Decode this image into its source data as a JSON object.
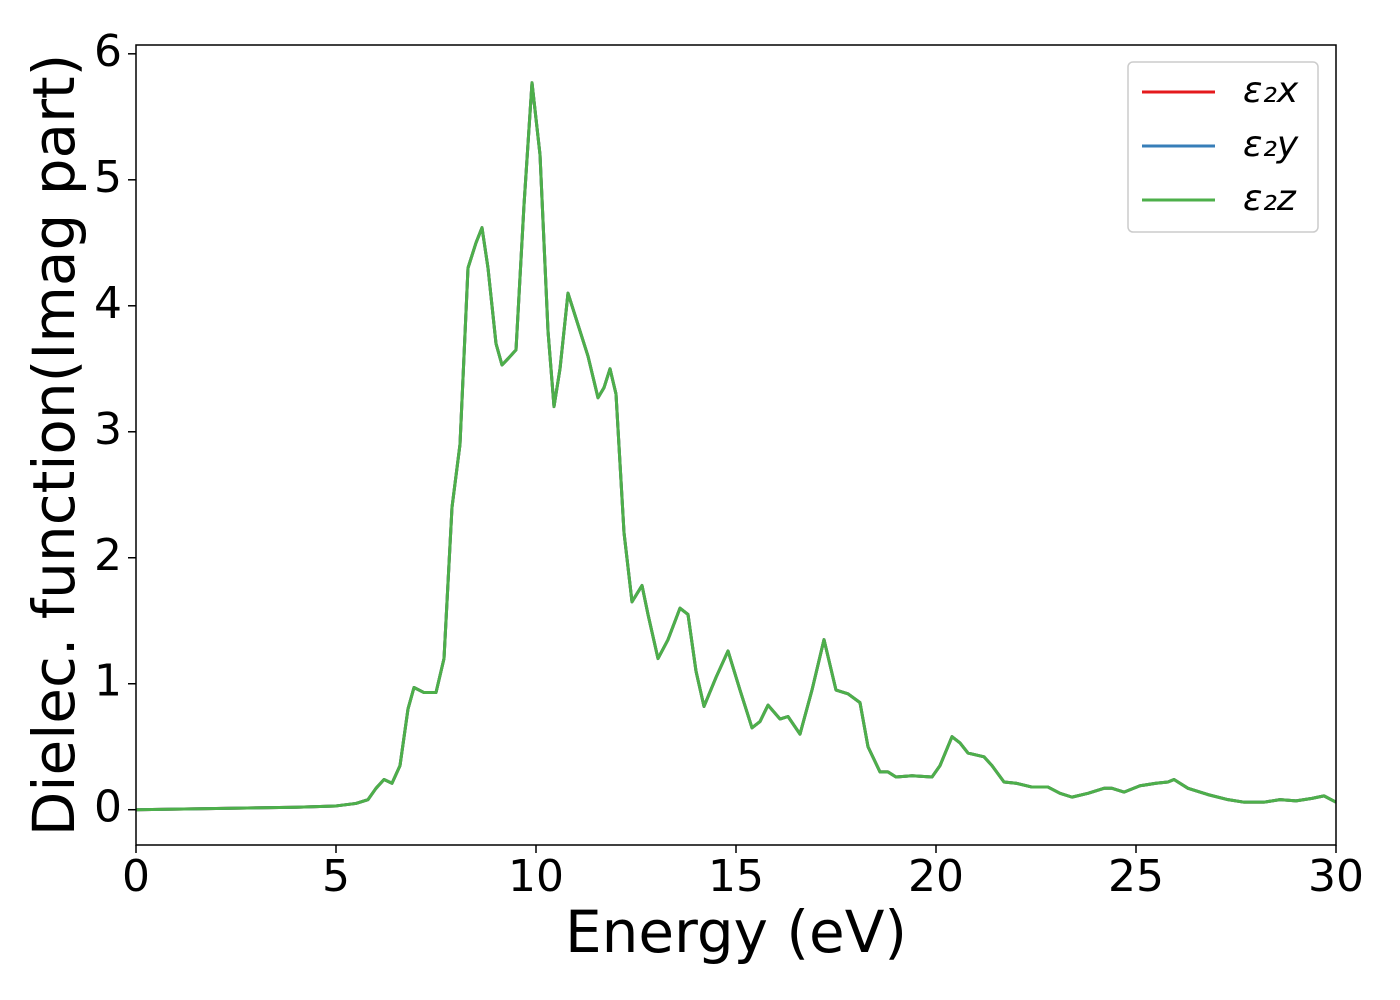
{
  "chart_data": {
    "type": "line",
    "xlabel": "Energy (eV)",
    "ylabel": "Dielec. function(Imag part)",
    "x": [
      0,
      2,
      4,
      5,
      5.5,
      5.8,
      6.0,
      6.2,
      6.4,
      6.6,
      6.8,
      6.95,
      7.2,
      7.5,
      7.7,
      7.9,
      8.1,
      8.3,
      8.5,
      8.65,
      8.8,
      9.0,
      9.15,
      9.3,
      9.5,
      9.7,
      9.9,
      10.1,
      10.3,
      10.45,
      10.6,
      10.8,
      11.0,
      11.3,
      11.55,
      11.7,
      11.85,
      12.0,
      12.2,
      12.4,
      12.65,
      12.8,
      13.05,
      13.3,
      13.6,
      13.8,
      14.0,
      14.2,
      14.5,
      14.8,
      15.1,
      15.4,
      15.6,
      15.8,
      16.1,
      16.3,
      16.6,
      16.9,
      17.2,
      17.5,
      17.8,
      18.1,
      18.3,
      18.6,
      18.8,
      19.0,
      19.4,
      19.9,
      20.1,
      20.4,
      20.6,
      20.8,
      21.2,
      21.4,
      21.7,
      22.0,
      22.4,
      22.8,
      23.1,
      23.4,
      23.8,
      24.2,
      24.4,
      24.7,
      25.1,
      25.5,
      25.8,
      25.95,
      26.3,
      26.8,
      27.3,
      27.7,
      28.2,
      28.6,
      29.0,
      29.4,
      29.7,
      30
    ],
    "series": [
      {
        "name": "ε₂x",
        "color": "#e41a1c",
        "values": [
          0,
          0.01,
          0.02,
          0.03,
          0.05,
          0.08,
          0.17,
          0.24,
          0.21,
          0.35,
          0.8,
          0.97,
          0.93,
          0.93,
          1.2,
          2.4,
          2.9,
          4.3,
          4.5,
          4.62,
          4.3,
          3.7,
          3.53,
          3.58,
          3.65,
          4.8,
          5.77,
          5.2,
          3.8,
          3.2,
          3.5,
          4.1,
          3.9,
          3.6,
          3.27,
          3.35,
          3.5,
          3.3,
          2.2,
          1.65,
          1.78,
          1.55,
          1.2,
          1.35,
          1.6,
          1.55,
          1.1,
          0.82,
          1.05,
          1.26,
          0.95,
          0.65,
          0.7,
          0.83,
          0.72,
          0.74,
          0.6,
          0.95,
          1.35,
          0.95,
          0.92,
          0.85,
          0.5,
          0.3,
          0.3,
          0.26,
          0.27,
          0.26,
          0.35,
          0.58,
          0.53,
          0.45,
          0.42,
          0.35,
          0.22,
          0.21,
          0.18,
          0.18,
          0.13,
          0.1,
          0.13,
          0.17,
          0.17,
          0.14,
          0.19,
          0.21,
          0.22,
          0.24,
          0.17,
          0.12,
          0.08,
          0.06,
          0.06,
          0.08,
          0.07,
          0.09,
          0.11,
          0.06
        ]
      },
      {
        "name": "ε₂y",
        "color": "#377eb8",
        "values": [
          0,
          0.01,
          0.02,
          0.03,
          0.05,
          0.08,
          0.17,
          0.24,
          0.21,
          0.35,
          0.8,
          0.97,
          0.93,
          0.93,
          1.2,
          2.4,
          2.9,
          4.3,
          4.5,
          4.62,
          4.3,
          3.7,
          3.53,
          3.58,
          3.65,
          4.8,
          5.77,
          5.2,
          3.8,
          3.2,
          3.5,
          4.1,
          3.9,
          3.6,
          3.27,
          3.35,
          3.5,
          3.3,
          2.2,
          1.65,
          1.78,
          1.55,
          1.2,
          1.35,
          1.6,
          1.55,
          1.1,
          0.82,
          1.05,
          1.26,
          0.95,
          0.65,
          0.7,
          0.83,
          0.72,
          0.74,
          0.6,
          0.95,
          1.35,
          0.95,
          0.92,
          0.85,
          0.5,
          0.3,
          0.3,
          0.26,
          0.27,
          0.26,
          0.35,
          0.58,
          0.53,
          0.45,
          0.42,
          0.35,
          0.22,
          0.21,
          0.18,
          0.18,
          0.13,
          0.1,
          0.13,
          0.17,
          0.17,
          0.14,
          0.19,
          0.21,
          0.22,
          0.24,
          0.17,
          0.12,
          0.08,
          0.06,
          0.06,
          0.08,
          0.07,
          0.09,
          0.11,
          0.06
        ]
      },
      {
        "name": "ε₂z",
        "color": "#4daf4a",
        "values": [
          0,
          0.01,
          0.02,
          0.03,
          0.05,
          0.08,
          0.17,
          0.24,
          0.21,
          0.35,
          0.8,
          0.97,
          0.93,
          0.93,
          1.2,
          2.4,
          2.9,
          4.3,
          4.5,
          4.62,
          4.3,
          3.7,
          3.53,
          3.58,
          3.65,
          4.8,
          5.77,
          5.2,
          3.8,
          3.2,
          3.5,
          4.1,
          3.9,
          3.6,
          3.27,
          3.35,
          3.5,
          3.3,
          2.2,
          1.65,
          1.78,
          1.55,
          1.2,
          1.35,
          1.6,
          1.55,
          1.1,
          0.82,
          1.05,
          1.26,
          0.95,
          0.65,
          0.7,
          0.83,
          0.72,
          0.74,
          0.6,
          0.95,
          1.35,
          0.95,
          0.92,
          0.85,
          0.5,
          0.3,
          0.3,
          0.26,
          0.27,
          0.26,
          0.35,
          0.58,
          0.53,
          0.45,
          0.42,
          0.35,
          0.22,
          0.21,
          0.18,
          0.18,
          0.13,
          0.1,
          0.13,
          0.17,
          0.17,
          0.14,
          0.19,
          0.21,
          0.22,
          0.24,
          0.17,
          0.12,
          0.08,
          0.06,
          0.06,
          0.08,
          0.07,
          0.09,
          0.11,
          0.06
        ]
      }
    ],
    "xlim": [
      0,
      30
    ],
    "xticks": [
      0,
      5,
      10,
      15,
      20,
      25,
      30
    ],
    "ylim": [
      -0.28,
      6.07
    ],
    "yticks": [
      0,
      1,
      2,
      3,
      4,
      5,
      6
    ],
    "grid": false,
    "legend": "upper right"
  }
}
